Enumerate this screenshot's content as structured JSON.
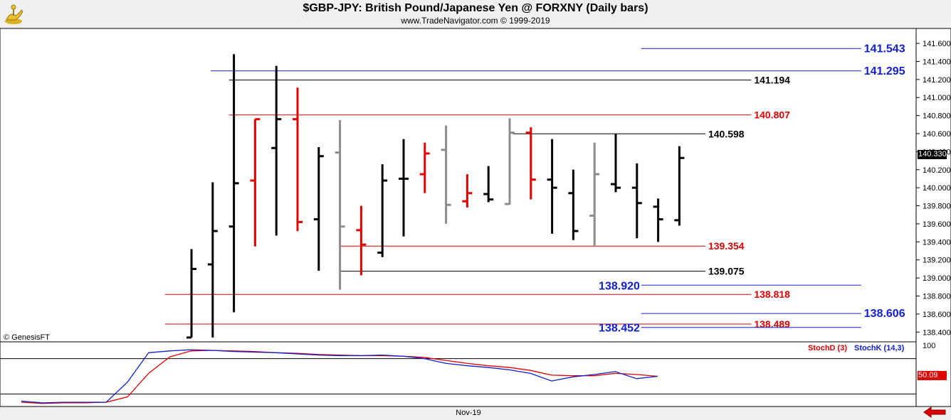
{
  "header": {
    "title": "$GBP-JPY:  British Pound/Japanese Yen @ FORXNY  (Daily bars)",
    "subtitle": "www.TradeNavigator.com © 1999-2019",
    "logo_icon": "genie-lamp-icon"
  },
  "credit": "© GenesisFT",
  "x_label": "Nov-19",
  "last_price_flag": "140.330",
  "stoch_flag": "50.09",
  "stoch_legend": {
    "d": "StochD (3)",
    "k": "StochK (14,3)"
  },
  "stoch_axis_label": "100",
  "colors": {
    "up": "#000000",
    "down": "#e00000",
    "neutral": "#8c8c8c",
    "stochD": "#e00000",
    "stochK": "#1020d0",
    "blue_level": "#1020d0",
    "red_level": "#e00000",
    "black_level": "#000000"
  },
  "chart_data": {
    "type": "ohlc",
    "ylim": [
      138.3,
      141.75
    ],
    "y_ticks": [
      "141.600",
      "141.400",
      "141.200",
      "141.000",
      "140.800",
      "140.600",
      "140.400",
      "140.200",
      "140.000",
      "139.800",
      "139.600",
      "139.400",
      "139.200",
      "139.000",
      "138.800",
      "138.600",
      "138.400"
    ],
    "bars": [
      {
        "h": 139.32,
        "l": 138.34,
        "o": 138.34,
        "c": 139.1,
        "col": "up"
      },
      {
        "h": 140.06,
        "l": 138.34,
        "o": 139.15,
        "c": 139.52,
        "col": "up"
      },
      {
        "h": 141.48,
        "l": 138.62,
        "o": 139.57,
        "c": 140.05,
        "col": "up"
      },
      {
        "h": 140.76,
        "l": 139.35,
        "o": 140.08,
        "c": 140.76,
        "col": "down"
      },
      {
        "h": 141.35,
        "l": 139.47,
        "o": 140.44,
        "c": 140.76,
        "col": "up"
      },
      {
        "h": 141.11,
        "l": 139.52,
        "o": 140.76,
        "c": 139.62,
        "col": "down"
      },
      {
        "h": 140.45,
        "l": 139.08,
        "o": 139.65,
        "c": 140.35,
        "col": "up"
      },
      {
        "h": 140.75,
        "l": 138.87,
        "o": 140.39,
        "c": 139.57,
        "col": "neutral"
      },
      {
        "h": 139.8,
        "l": 139.03,
        "o": 139.53,
        "c": 139.37,
        "col": "down"
      },
      {
        "h": 140.26,
        "l": 139.23,
        "o": 139.28,
        "c": 140.08,
        "col": "up"
      },
      {
        "h": 140.54,
        "l": 139.46,
        "o": 140.1,
        "c": 140.1,
        "col": "up"
      },
      {
        "h": 140.5,
        "l": 139.94,
        "o": 140.15,
        "c": 140.38,
        "col": "down"
      },
      {
        "h": 140.69,
        "l": 139.6,
        "o": 140.42,
        "c": 139.81,
        "col": "neutral"
      },
      {
        "h": 140.15,
        "l": 139.78,
        "o": 139.85,
        "c": 139.94,
        "col": "down"
      },
      {
        "h": 140.24,
        "l": 139.84,
        "o": 139.93,
        "c": 139.87,
        "col": "up"
      },
      {
        "h": 140.77,
        "l": 139.81,
        "o": 139.82,
        "c": 140.61,
        "col": "neutral"
      },
      {
        "h": 140.67,
        "l": 139.87,
        "o": 140.61,
        "c": 140.09,
        "col": "down"
      },
      {
        "h": 140.54,
        "l": 139.49,
        "o": 140.09,
        "c": 140.0,
        "col": "up"
      },
      {
        "h": 140.2,
        "l": 139.42,
        "o": 139.94,
        "c": 139.52,
        "col": "up"
      },
      {
        "h": 140.5,
        "l": 139.36,
        "o": 139.69,
        "c": 140.15,
        "col": "neutral"
      },
      {
        "h": 140.6,
        "l": 139.95,
        "o": 140.04,
        "c": 140.0,
        "col": "up"
      },
      {
        "h": 140.27,
        "l": 139.44,
        "o": 140.0,
        "c": 139.83,
        "col": "up"
      },
      {
        "h": 139.88,
        "l": 139.4,
        "o": 139.79,
        "c": 139.65,
        "col": "up"
      },
      {
        "h": 140.46,
        "l": 139.58,
        "o": 139.64,
        "c": 140.33,
        "col": "up"
      }
    ],
    "levels": [
      {
        "value": 141.543,
        "label": "141.543",
        "color": "blue",
        "x_from": 0.7,
        "x_to": 0.94,
        "label_side": "right"
      },
      {
        "value": 141.295,
        "label": "141.295",
        "color": "blue",
        "x_from": 0.23,
        "x_to": 0.94,
        "label_side": "right"
      },
      {
        "value": 141.194,
        "label": "141.194",
        "color": "black",
        "x_from": 0.25,
        "x_to": 0.82,
        "label_side": "right"
      },
      {
        "value": 140.807,
        "label": "140.807",
        "color": "red",
        "x_from": 0.25,
        "x_to": 0.82,
        "label_side": "right"
      },
      {
        "value": 140.598,
        "label": "140.598",
        "color": "black",
        "x_from": 0.56,
        "x_to": 0.77,
        "label_side": "right"
      },
      {
        "value": 139.354,
        "label": "139.354",
        "color": "red",
        "x_from": 0.37,
        "x_to": 0.77,
        "label_side": "right"
      },
      {
        "value": 139.075,
        "label": "139.075",
        "color": "black",
        "x_from": 0.37,
        "x_to": 0.77,
        "label_side": "right"
      },
      {
        "value": 138.92,
        "label": "138.920",
        "color": "blue",
        "x_from": 0.7,
        "x_to": 0.94,
        "label_side": "left"
      },
      {
        "value": 138.818,
        "label": "138.818",
        "color": "red",
        "x_from": 0.18,
        "x_to": 0.82,
        "label_side": "right"
      },
      {
        "value": 138.606,
        "label": "138.606",
        "color": "blue",
        "x_from": 0.7,
        "x_to": 0.94,
        "label_side": "right"
      },
      {
        "value": 138.489,
        "label": "138.489",
        "color": "red",
        "x_from": 0.18,
        "x_to": 0.82,
        "label_side": "right"
      },
      {
        "value": 138.452,
        "label": "138.452",
        "color": "blue",
        "x_from": 0.7,
        "x_to": 0.94,
        "label_side": "left"
      }
    ],
    "stoch": {
      "ylim": [
        0,
        100
      ],
      "ref_lines": [
        80,
        20
      ],
      "x": [
        0,
        1,
        2,
        3,
        4,
        5,
        6,
        7,
        8,
        9,
        10,
        11,
        12,
        13,
        14,
        15,
        16,
        17,
        18,
        19,
        20,
        21,
        22,
        23,
        24,
        25,
        26,
        27,
        28,
        29,
        30,
        31
      ],
      "K": [
        8,
        5,
        6,
        6,
        6,
        40,
        90,
        93,
        95,
        94,
        92,
        91,
        90,
        88,
        86,
        85,
        85,
        86,
        84,
        80,
        72,
        68,
        65,
        61,
        55,
        42,
        49,
        53,
        58,
        46,
        50,
        null
      ],
      "D": [
        6,
        4,
        5,
        5,
        6,
        15,
        55,
        83,
        93,
        94,
        93,
        92,
        90,
        89,
        87,
        86,
        85,
        85,
        84,
        82,
        77,
        72,
        68,
        65,
        60,
        52,
        51,
        51,
        55,
        53,
        50,
        null
      ]
    }
  }
}
